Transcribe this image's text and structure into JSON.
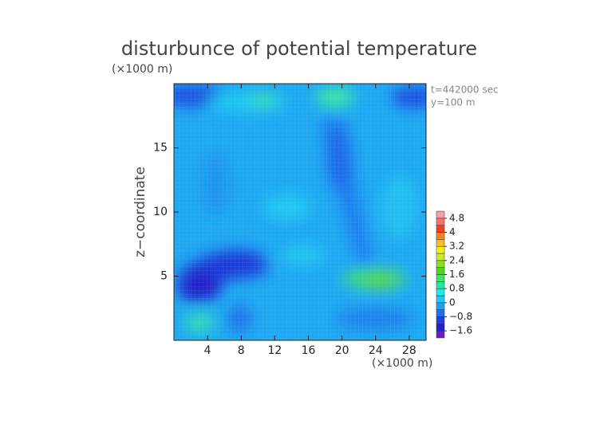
{
  "chart_data": {
    "type": "contour",
    "title": "disturbunce of potential temperature",
    "y_unit": "(×1000 m)",
    "x_unit": "(×1000 m)",
    "ylabel": "z−coordinate",
    "annotations": [
      "t=442000 sec",
      "y=100 m"
    ],
    "xlim": [
      0,
      30
    ],
    "ylim": [
      0,
      20
    ],
    "xticks": [
      4,
      8,
      12,
      16,
      20,
      24,
      28
    ],
    "yticks": [
      5,
      10,
      15
    ],
    "colorbar": {
      "levels": [
        -2,
        -1.6,
        -1.2,
        -0.8,
        -0.4,
        0,
        0.4,
        0.8,
        1.2,
        1.6,
        2,
        2.4,
        2.8,
        3.2,
        3.6,
        4,
        4.4,
        4.8,
        5.2
      ],
      "colors": [
        "#6a1fbf",
        "#2020d0",
        "#1f3fe0",
        "#1f70f0",
        "#1fa0f8",
        "#1fc8f8",
        "#1fe8e8",
        "#1fe8a0",
        "#3ee860",
        "#4fd820",
        "#8ce020",
        "#c8f020",
        "#f0f020",
        "#f8c020",
        "#f88020",
        "#f84020",
        "#f87070",
        "#f8a0a0"
      ],
      "ticks": [
        {
          "value": -1.6,
          "label": "−1.6"
        },
        {
          "value": -0.8,
          "label": "−0.8"
        },
        0,
        0.8,
        1.6,
        2.4,
        3.2,
        4,
        4.8
      ]
    }
  }
}
